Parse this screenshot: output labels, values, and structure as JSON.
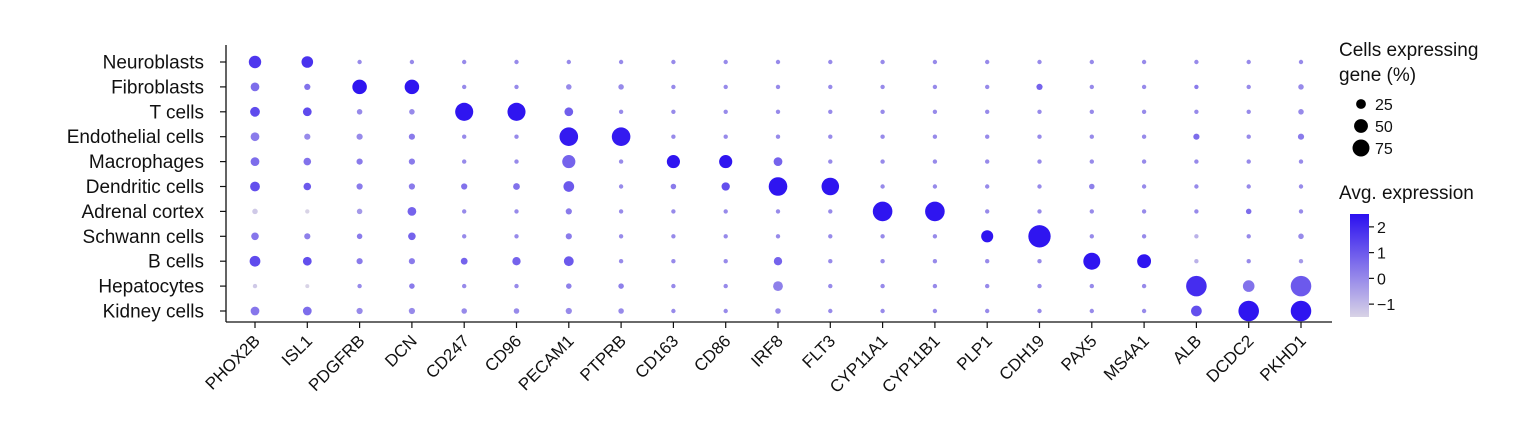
{
  "chart_data": {
    "type": "dotplot",
    "genes": [
      "PHOX2B",
      "ISL1",
      "PDGFRB",
      "DCN",
      "CD247",
      "CD96",
      "PECAM1",
      "PTPRB",
      "CD163",
      "CD86",
      "IRF8",
      "FLT3",
      "CYP11A1",
      "CYP11B1",
      "PLP1",
      "CDH19",
      "PAX5",
      "MS4A1",
      "ALB",
      "DCDC2",
      "PKHD1"
    ],
    "cell_types": [
      "Neuroblasts",
      "Fibroblasts",
      "T cells",
      "Endothelial cells",
      "Macrophages",
      "Dendritic cells",
      "Adrenal cortex",
      "Schwann cells",
      "B cells",
      "Hepatocytes",
      "Kidney cells"
    ],
    "size_legend": {
      "title_lines": [
        "Cells expressing",
        "gene (%)"
      ],
      "values": [
        25,
        50,
        75
      ],
      "labels": [
        "25",
        "50",
        "75"
      ]
    },
    "color_legend": {
      "title": "Avg. expression",
      "min": -1.5,
      "max": 2.5,
      "ticks": [
        2,
        1,
        0,
        -1
      ],
      "tick_labels": [
        "2",
        "1",
        "0",
        "−1"
      ],
      "color_low": "#d8d3e6",
      "color_high": "#2b10f0"
    },
    "pct": [
      [
        40,
        35,
        5,
        5,
        5,
        5,
        5,
        5,
        5,
        5,
        5,
        5,
        5,
        5,
        5,
        5,
        5,
        5,
        5,
        5,
        5
      ],
      [
        20,
        10,
        55,
        55,
        5,
        5,
        8,
        8,
        5,
        5,
        5,
        5,
        5,
        5,
        5,
        10,
        5,
        5,
        5,
        5,
        8
      ],
      [
        25,
        20,
        8,
        8,
        85,
        85,
        20,
        5,
        5,
        5,
        5,
        5,
        5,
        5,
        5,
        5,
        5,
        5,
        5,
        5,
        8
      ],
      [
        20,
        10,
        10,
        10,
        5,
        5,
        90,
        90,
        5,
        5,
        5,
        5,
        5,
        5,
        5,
        5,
        5,
        5,
        10,
        5,
        10
      ],
      [
        20,
        15,
        10,
        10,
        5,
        5,
        45,
        5,
        45,
        45,
        20,
        5,
        5,
        5,
        5,
        5,
        5,
        5,
        5,
        5,
        5
      ],
      [
        25,
        15,
        10,
        10,
        10,
        12,
        30,
        5,
        8,
        18,
        90,
        80,
        5,
        5,
        5,
        5,
        8,
        5,
        5,
        5,
        5
      ],
      [
        8,
        5,
        8,
        20,
        5,
        5,
        10,
        5,
        5,
        5,
        5,
        5,
        100,
        100,
        5,
        5,
        5,
        5,
        5,
        8,
        5
      ],
      [
        15,
        10,
        8,
        15,
        5,
        5,
        10,
        5,
        5,
        5,
        5,
        5,
        5,
        5,
        38,
        130,
        5,
        5,
        5,
        5,
        8
      ],
      [
        30,
        20,
        10,
        10,
        12,
        18,
        25,
        5,
        5,
        5,
        18,
        5,
        5,
        5,
        5,
        5,
        75,
        50,
        5,
        5,
        5
      ],
      [
        5,
        3,
        5,
        8,
        5,
        5,
        8,
        8,
        5,
        5,
        25,
        5,
        5,
        5,
        5,
        5,
        5,
        5,
        110,
        35,
        110
      ],
      [
        20,
        20,
        10,
        10,
        8,
        8,
        10,
        8,
        5,
        5,
        8,
        5,
        5,
        5,
        5,
        5,
        5,
        5,
        30,
        110,
        110
      ]
    ],
    "expr": [
      [
        1.7,
        1.8,
        0,
        0,
        0,
        0,
        0,
        0,
        0,
        0,
        0,
        0,
        0,
        0,
        0,
        0,
        0,
        0,
        0,
        0,
        0
      ],
      [
        0.6,
        0.5,
        2.4,
        2.4,
        0,
        0,
        0,
        0,
        0,
        0,
        0,
        0,
        0,
        0,
        0,
        0.8,
        0,
        0,
        0.3,
        0,
        0
      ],
      [
        1.3,
        1.3,
        0,
        0,
        2.4,
        2.4,
        0.9,
        0,
        0,
        0,
        0,
        0,
        0,
        0,
        0,
        0,
        0,
        0,
        0,
        0,
        0
      ],
      [
        0.3,
        0,
        0,
        0.3,
        0,
        0,
        2.3,
        2.3,
        0,
        0,
        0,
        0,
        0,
        0,
        0,
        0,
        0,
        0,
        0.6,
        0,
        0.3
      ],
      [
        0.6,
        0.5,
        0.3,
        0.3,
        0,
        0,
        0.8,
        0,
        2.4,
        2.4,
        0.8,
        0,
        0,
        0,
        0,
        0,
        0,
        0,
        0,
        0,
        0
      ],
      [
        1.2,
        1.0,
        0.3,
        0.3,
        0.5,
        0.5,
        1.0,
        0,
        0.3,
        1.2,
        2.4,
        2.4,
        0,
        0,
        0,
        0,
        0.2,
        0,
        0,
        0,
        0
      ],
      [
        -1.3,
        -1.5,
        -0.3,
        0.8,
        0,
        0,
        0.3,
        0,
        0,
        0,
        0,
        0,
        2.4,
        2.4,
        0,
        0,
        0,
        0,
        0,
        0.6,
        0
      ],
      [
        0.4,
        0.2,
        0.3,
        0.8,
        0,
        0,
        0.3,
        0,
        0,
        0,
        0,
        0,
        0,
        0,
        2.4,
        2.4,
        0,
        0,
        -0.8,
        0,
        0
      ],
      [
        1.3,
        1.2,
        0.3,
        0.3,
        0.8,
        0.8,
        1.0,
        0,
        0,
        0,
        0.8,
        0,
        0,
        0,
        0,
        0,
        2.4,
        2.4,
        -0.8,
        0,
        -0.3
      ],
      [
        -1.3,
        -1.5,
        0,
        0.3,
        0,
        0,
        0.2,
        0.2,
        0,
        0,
        0.2,
        0,
        0,
        0,
        0,
        0,
        0,
        0,
        1.9,
        0.5,
        1.0
      ],
      [
        0.4,
        0.6,
        0,
        0,
        0,
        0,
        0,
        0,
        0,
        0,
        0,
        0,
        0,
        0,
        0,
        0,
        0,
        0,
        1.2,
        2.4,
        2.4
      ]
    ]
  }
}
